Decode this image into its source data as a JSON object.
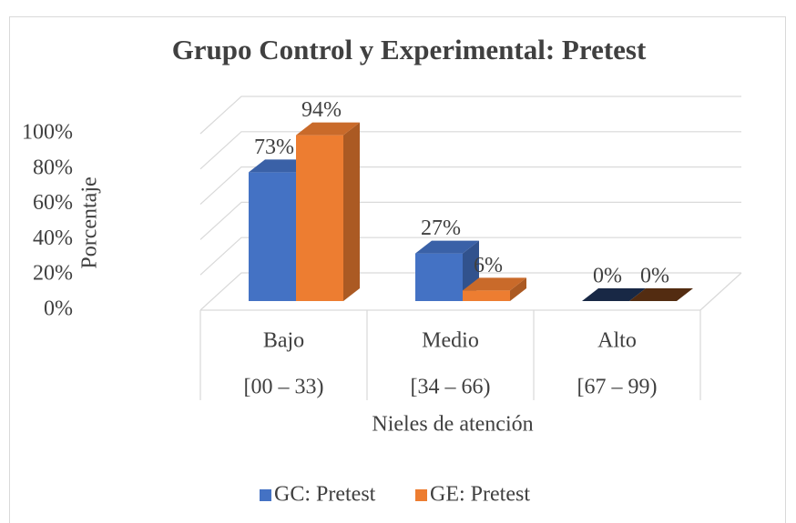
{
  "chart_data": {
    "type": "bar3d",
    "title": "Grupo Control  y Experimental: Pretest",
    "categories": [
      "Bajo",
      "Medio",
      "Alto"
    ],
    "category_ranges": [
      "[00 – 33)",
      "[34 – 66)",
      "[67 – 99)"
    ],
    "x_label": "Nieles de atención",
    "y_label": "Porcentaje",
    "series": [
      {
        "name": "GC: Pretest",
        "color": "#4472c4",
        "values": [
          73,
          27,
          0
        ],
        "value_labels": [
          "73%",
          "27%",
          "0%"
        ]
      },
      {
        "name": "GE: Pretest",
        "color": "#ed7d31",
        "values": [
          94,
          6,
          0
        ],
        "value_labels": [
          "94%",
          "6%",
          "0%"
        ]
      }
    ],
    "ylim": [
      0,
      100
    ],
    "yticks": [
      {
        "value": 0,
        "label": "0%"
      },
      {
        "value": 20,
        "label": "20%"
      },
      {
        "value": 40,
        "label": "40%"
      },
      {
        "value": 60,
        "label": "60%"
      },
      {
        "value": 80,
        "label": "80%"
      },
      {
        "value": 100,
        "label": "100%"
      }
    ],
    "grid": true,
    "legend": "bottom"
  }
}
